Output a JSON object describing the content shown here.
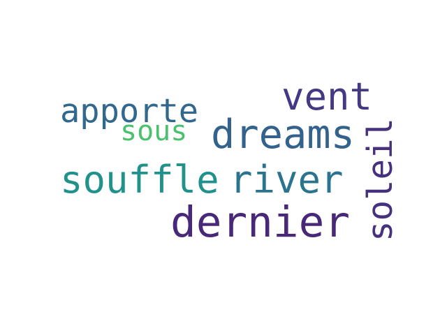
{
  "words": [
    {
      "text": "vent",
      "color": "#443983"
    },
    {
      "text": "apporte",
      "color": "#31688e"
    },
    {
      "text": "sous",
      "color": "#4ac16d"
    },
    {
      "text": "dreams",
      "color": "#33638d"
    },
    {
      "text": "souffle",
      "color": "#21918c"
    },
    {
      "text": "river",
      "color": "#2c738e"
    },
    {
      "text": "dernier",
      "color": "#482878"
    },
    {
      "text": "soleil",
      "color": "#46317e"
    }
  ]
}
